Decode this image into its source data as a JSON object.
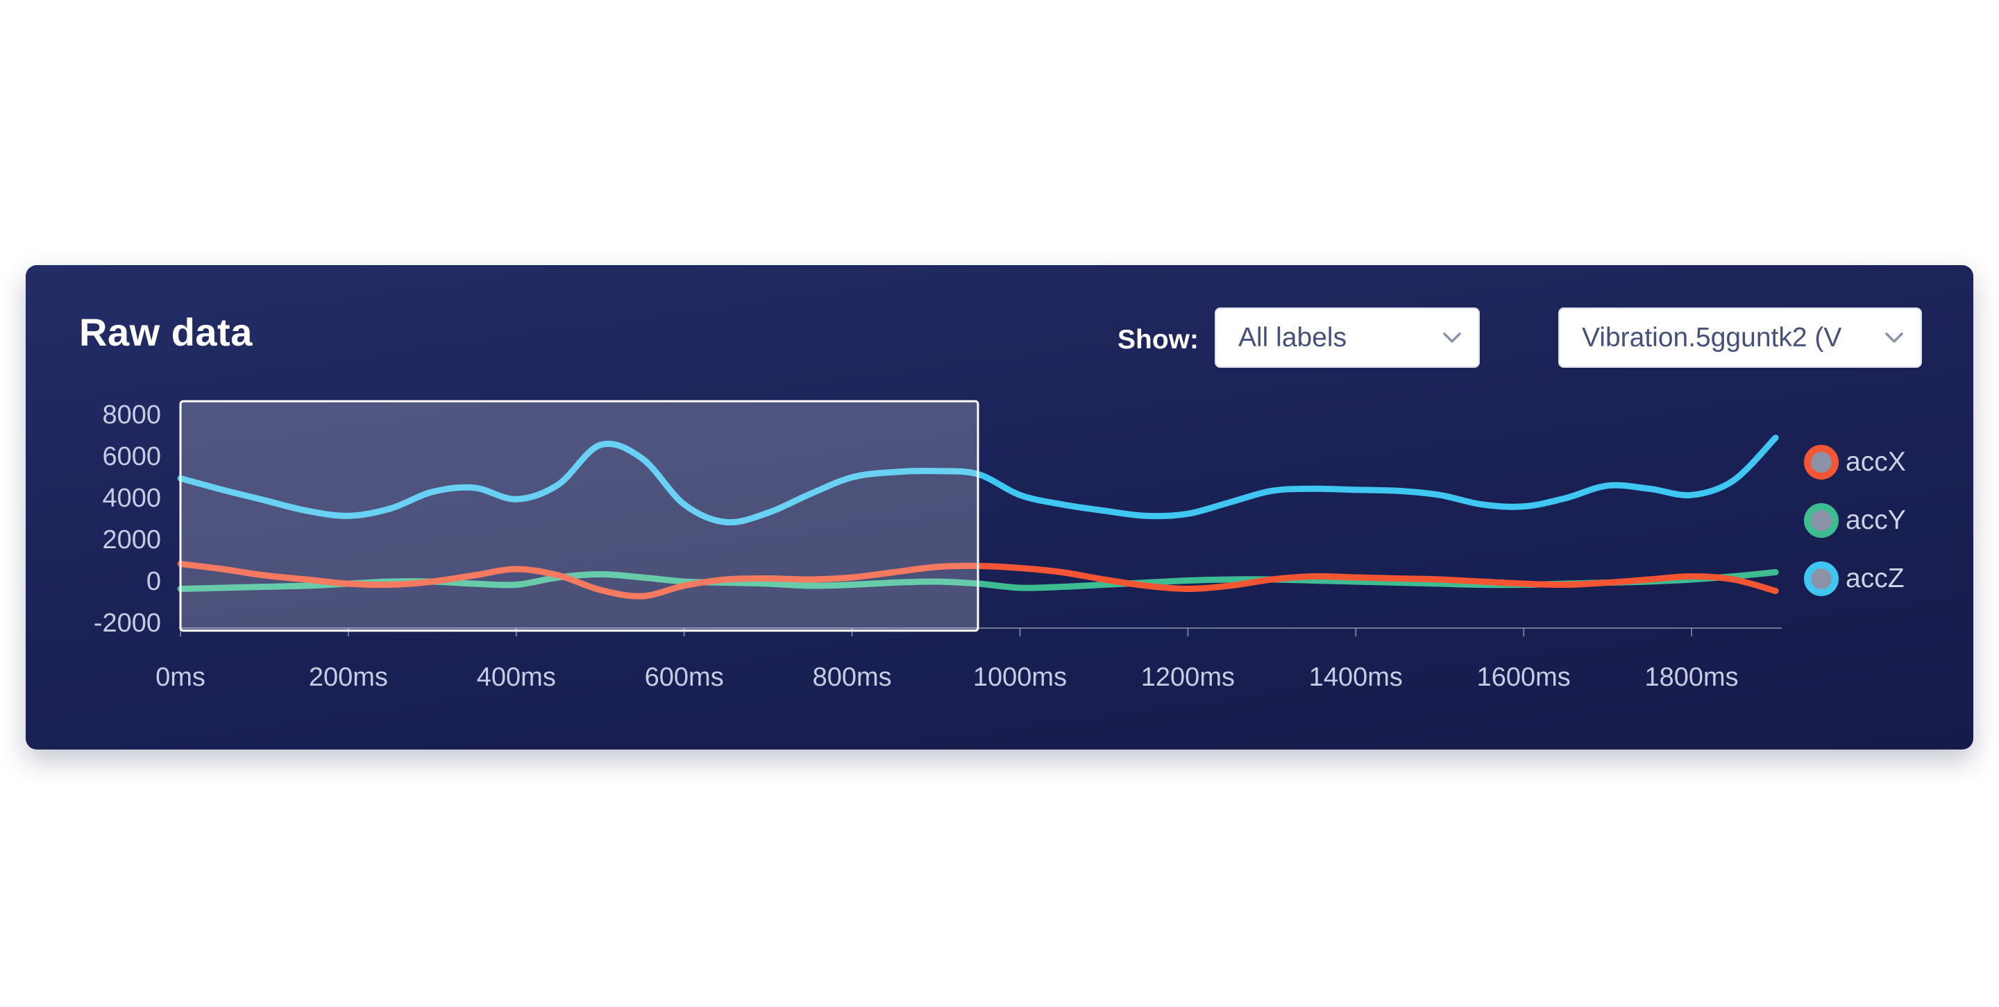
{
  "panel": {
    "title": "Raw data"
  },
  "controls": {
    "show_label": "Show:",
    "label_filter_value": "All labels",
    "sample_select_value": "Vibration.5gguntk2 (V"
  },
  "legend": {
    "items": [
      {
        "label": "accX",
        "color": "#f45532"
      },
      {
        "label": "accY",
        "color": "#3ebd93"
      },
      {
        "label": "accZ",
        "color": "#3fc6f1"
      }
    ]
  },
  "chart_data": {
    "type": "line",
    "title": "Raw data",
    "xlabel": "",
    "ylabel": "",
    "xlim": [
      0,
      1910
    ],
    "ylim": [
      -2400,
      8700
    ],
    "grid": false,
    "legend_position": "right",
    "x_ticks": [
      {
        "label": "0ms",
        "t": 0
      },
      {
        "label": "200ms",
        "t": 200
      },
      {
        "label": "400ms",
        "t": 400
      },
      {
        "label": "600ms",
        "t": 600
      },
      {
        "label": "800ms",
        "t": 800
      },
      {
        "label": "1000ms",
        "t": 1000
      },
      {
        "label": "1200ms",
        "t": 1200
      },
      {
        "label": "1400ms",
        "t": 1400
      },
      {
        "label": "1600ms",
        "t": 1600
      },
      {
        "label": "1800ms",
        "t": 1800
      }
    ],
    "y_ticks": [
      {
        "label": "8000",
        "v": 8000
      },
      {
        "label": "6000",
        "v": 6000
      },
      {
        "label": "4000",
        "v": 4000
      },
      {
        "label": "2000",
        "v": 2000
      },
      {
        "label": "0",
        "v": 0
      },
      {
        "label": "-2000",
        "v": -2000
      }
    ],
    "x": [
      0,
      50,
      100,
      150,
      200,
      250,
      300,
      350,
      400,
      450,
      500,
      550,
      600,
      650,
      700,
      750,
      800,
      850,
      900,
      950,
      1000,
      1050,
      1100,
      1150,
      1200,
      1250,
      1300,
      1350,
      1400,
      1450,
      1500,
      1550,
      1600,
      1650,
      1700,
      1750,
      1800,
      1850,
      1900
    ],
    "series": [
      {
        "name": "accY",
        "color": "#3ebd93",
        "values": [
          -350,
          -300,
          -250,
          -200,
          -100,
          0,
          0,
          -100,
          -150,
          200,
          350,
          200,
          0,
          -50,
          -100,
          -200,
          -150,
          -50,
          0,
          -100,
          -300,
          -250,
          -150,
          -50,
          50,
          100,
          100,
          50,
          0,
          -50,
          -100,
          -150,
          -150,
          -100,
          -50,
          0,
          100,
          250,
          450
        ]
      },
      {
        "name": "accX",
        "color": "#f45532",
        "values": [
          850,
          600,
          300,
          100,
          -100,
          -150,
          0,
          300,
          600,
          300,
          -400,
          -700,
          -200,
          100,
          150,
          100,
          200,
          450,
          700,
          750,
          650,
          450,
          100,
          -200,
          -350,
          -200,
          100,
          250,
          200,
          150,
          100,
          0,
          -100,
          -150,
          -50,
          100,
          250,
          100,
          -450
        ]
      },
      {
        "name": "accZ",
        "color": "#3fc6f1",
        "values": [
          4950,
          4400,
          3900,
          3400,
          3150,
          3500,
          4300,
          4500,
          3950,
          4650,
          6550,
          5900,
          3700,
          2850,
          3300,
          4200,
          5000,
          5250,
          5300,
          5150,
          4150,
          3700,
          3400,
          3150,
          3250,
          3800,
          4350,
          4450,
          4400,
          4350,
          4150,
          3700,
          3600,
          4000,
          4600,
          4450,
          4150,
          4850,
          6900
        ]
      }
    ],
    "selection": {
      "t_start": 0,
      "t_end": 950,
      "v_min": -2350,
      "v_max": 8650
    }
  }
}
